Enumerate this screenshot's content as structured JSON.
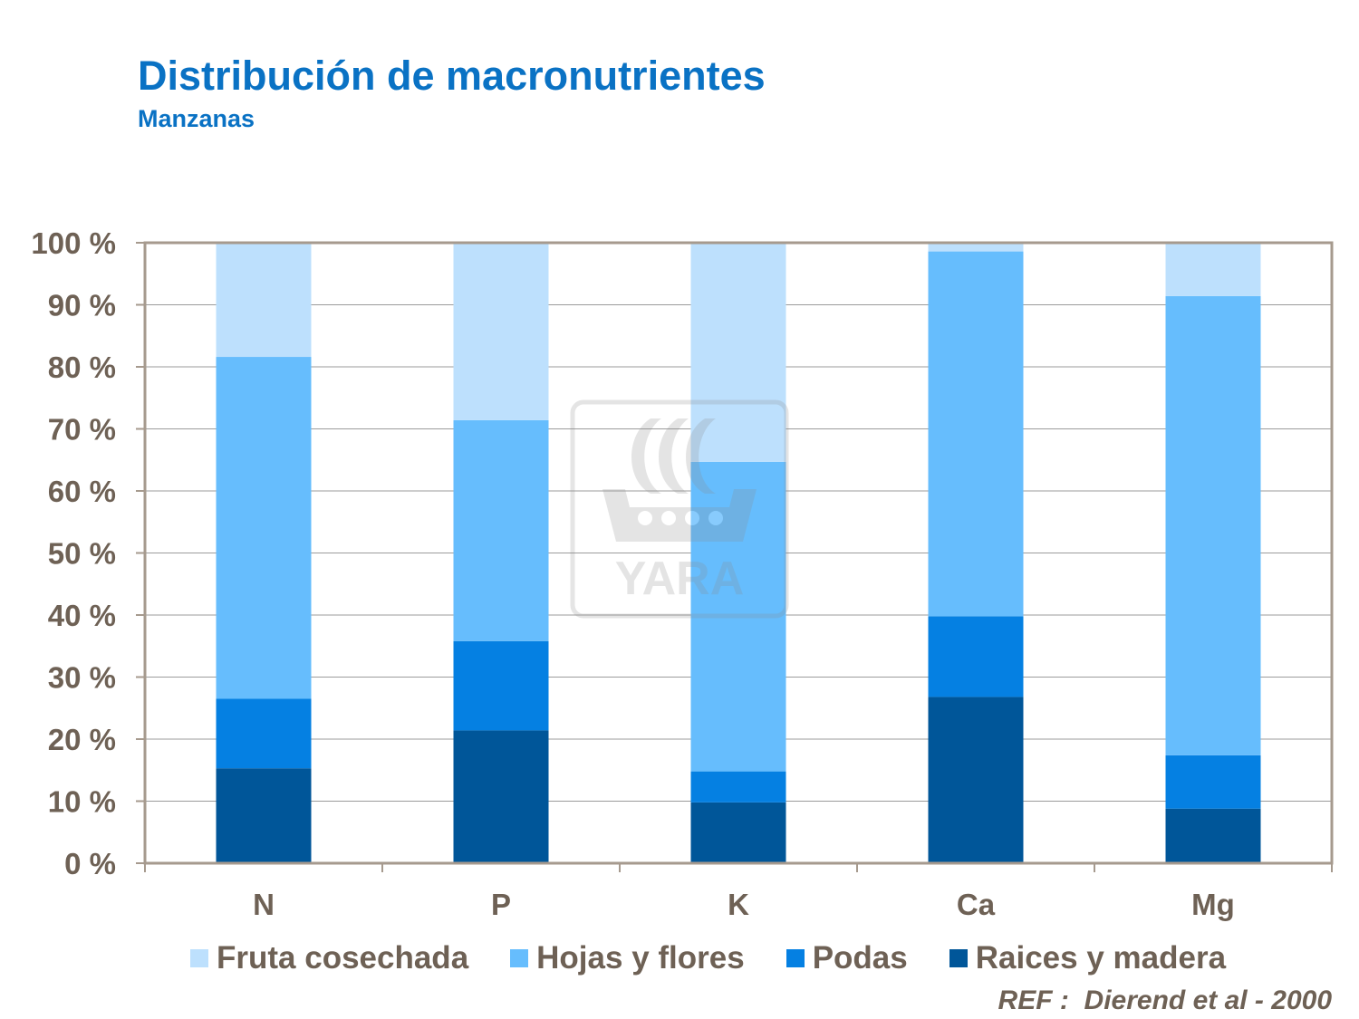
{
  "header": {
    "title": "Distribución de macronutrientes",
    "subtitle": "Manzanas"
  },
  "reference": "REF :  Dierend et al - 2000",
  "watermark": {
    "text": "YARA",
    "icon": "yara-viking-ship-logo"
  },
  "colors": {
    "fruta": "#bde0fd",
    "hojas": "#66bdfd",
    "podas": "#0580e2",
    "raices": "#005699",
    "axis": "#a69a8e",
    "text": "#6e6155"
  },
  "chart_data": {
    "type": "bar",
    "stacked": true,
    "categories": [
      "N",
      "P",
      "K",
      "Ca",
      "Mg"
    ],
    "ylim": [
      0,
      100
    ],
    "yticks": [
      "0 %",
      "10 %",
      "20 %",
      "30 %",
      "40 %",
      "50 %",
      "60 %",
      "70 %",
      "80 %",
      "90 %",
      "100 %"
    ],
    "grid": true,
    "legend_position": "bottom",
    "series": [
      {
        "name": "Raices y madera",
        "color_key": "raices",
        "values": [
          15.3,
          21.4,
          9.8,
          26.8,
          8.8
        ]
      },
      {
        "name": "Podas",
        "color_key": "podas",
        "values": [
          11.2,
          14.4,
          5.0,
          13.0,
          8.6
        ]
      },
      {
        "name": "Hojas y flores",
        "color_key": "hojas",
        "values": [
          55.1,
          35.6,
          49.9,
          58.8,
          74.0
        ]
      },
      {
        "name": "Fruta cosechada",
        "color_key": "fruta",
        "values": [
          18.4,
          28.6,
          35.3,
          1.4,
          8.6
        ]
      }
    ],
    "legend_order": [
      "Fruta cosechada",
      "Hojas y flores",
      "Podas",
      "Raices y madera"
    ]
  }
}
